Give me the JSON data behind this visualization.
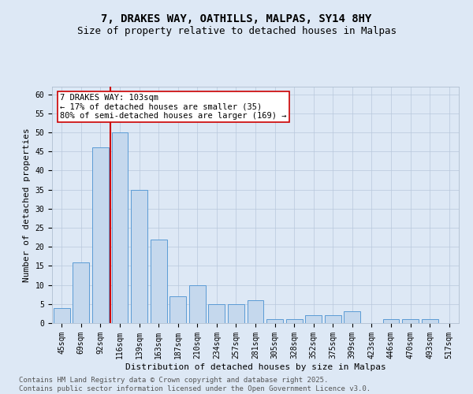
{
  "title_line1": "7, DRAKES WAY, OATHILLS, MALPAS, SY14 8HY",
  "title_line2": "Size of property relative to detached houses in Malpas",
  "categories": [
    "45sqm",
    "69sqm",
    "92sqm",
    "116sqm",
    "139sqm",
    "163sqm",
    "187sqm",
    "210sqm",
    "234sqm",
    "257sqm",
    "281sqm",
    "305sqm",
    "328sqm",
    "352sqm",
    "375sqm",
    "399sqm",
    "423sqm",
    "446sqm",
    "470sqm",
    "493sqm",
    "517sqm"
  ],
  "values": [
    4,
    16,
    46,
    50,
    35,
    22,
    7,
    10,
    5,
    5,
    6,
    1,
    1,
    2,
    2,
    3,
    0,
    1,
    1,
    1,
    0
  ],
  "bar_color": "#c5d8ed",
  "bar_edge_color": "#5b9bd5",
  "vline_x": 2.5,
  "vline_color": "#cc0000",
  "annotation_text": "7 DRAKES WAY: 103sqm\n← 17% of detached houses are smaller (35)\n80% of semi-detached houses are larger (169) →",
  "annotation_box_color": "#ffffff",
  "annotation_box_edge_color": "#cc0000",
  "xlabel": "Distribution of detached houses by size in Malpas",
  "ylabel": "Number of detached properties",
  "ylim": [
    0,
    62
  ],
  "yticks": [
    0,
    5,
    10,
    15,
    20,
    25,
    30,
    35,
    40,
    45,
    50,
    55,
    60
  ],
  "background_color": "#dde8f5",
  "plot_bg_color": "#dde8f5",
  "footer": "Contains HM Land Registry data © Crown copyright and database right 2025.\nContains public sector information licensed under the Open Government Licence v3.0.",
  "title_fontsize": 10,
  "subtitle_fontsize": 9,
  "axis_label_fontsize": 8,
  "tick_fontsize": 7,
  "annotation_fontsize": 7.5,
  "footer_fontsize": 6.5
}
